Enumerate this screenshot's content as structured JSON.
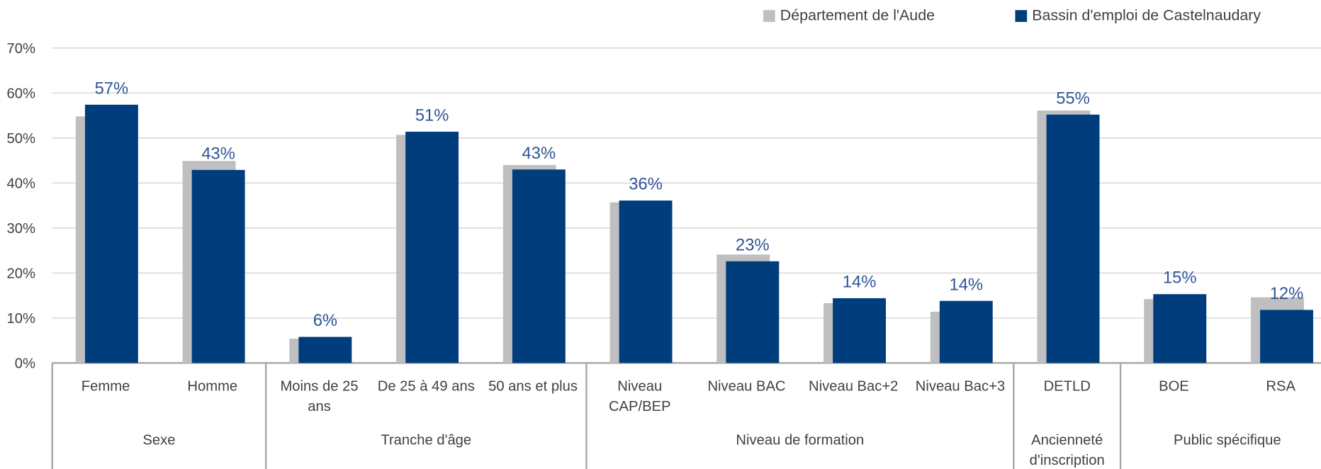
{
  "chart_data": {
    "type": "bar",
    "groups": [
      {
        "name": "Sexe",
        "categories": [
          "Femme",
          "Homme"
        ]
      },
      {
        "name": "Tranche d'âge",
        "categories": [
          "Moins de 25 ans",
          "De 25 à 49 ans",
          "50 ans et plus"
        ]
      },
      {
        "name": "Niveau de formation",
        "categories": [
          "Niveau CAP/BEP",
          "Niveau BAC",
          "Niveau Bac+2",
          "Niveau Bac+3"
        ]
      },
      {
        "name": "Ancienneté d'inscription",
        "categories": [
          "DETLD"
        ]
      },
      {
        "name": "Public spécifique",
        "categories": [
          "BOE",
          "RSA"
        ]
      }
    ],
    "series": [
      {
        "name": "Département de l'Aude",
        "color": "#bfbfbf",
        "values": [
          54.8,
          44.9,
          5.4,
          50.7,
          44.0,
          35.7,
          24.1,
          13.3,
          11.4,
          56.1,
          14.2,
          14.6
        ]
      },
      {
        "name": "Bassin d'emploi de Castelnaudary",
        "color": "#003d7d",
        "values": [
          57.4,
          42.9,
          5.8,
          51.4,
          43.0,
          36.1,
          22.6,
          14.4,
          13.8,
          55.2,
          15.3,
          11.8
        ],
        "value_labels": [
          "57%",
          "43%",
          "6%",
          "51%",
          "43%",
          "36%",
          "23%",
          "14%",
          "14%",
          "55%",
          "15%",
          "12%"
        ]
      }
    ],
    "ylim": [
      0,
      70
    ],
    "yticks": [
      {
        "value": 0,
        "label": "0%"
      },
      {
        "value": 10,
        "label": "10%"
      },
      {
        "value": 20,
        "label": "20%"
      },
      {
        "value": 30,
        "label": "30%"
      },
      {
        "value": 40,
        "label": "40%"
      },
      {
        "value": 50,
        "label": "50%"
      },
      {
        "value": 60,
        "label": "60%"
      },
      {
        "value": 70,
        "label": "70%"
      }
    ],
    "grid": true
  }
}
